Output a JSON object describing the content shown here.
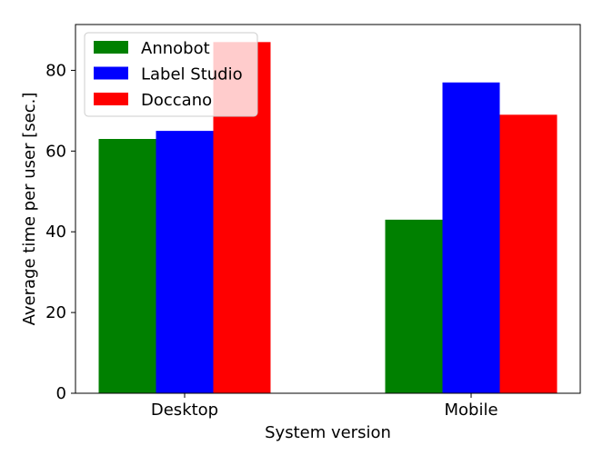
{
  "chart_data": {
    "type": "bar",
    "categories": [
      "Desktop",
      "Mobile"
    ],
    "series": [
      {
        "name": "Annobot",
        "color": "#008000",
        "values": [
          63,
          43
        ]
      },
      {
        "name": "Label Studio",
        "color": "#0000ff",
        "values": [
          65,
          77
        ]
      },
      {
        "name": "Doccano",
        "color": "#ff0000",
        "values": [
          87,
          69
        ]
      }
    ],
    "xlabel": "System version",
    "ylabel": "Average time per user [sec.]",
    "ylim": [
      0,
      91.35
    ],
    "yticks": [
      0,
      20,
      40,
      60,
      80
    ],
    "legend_position": "top-left",
    "grid": false
  }
}
